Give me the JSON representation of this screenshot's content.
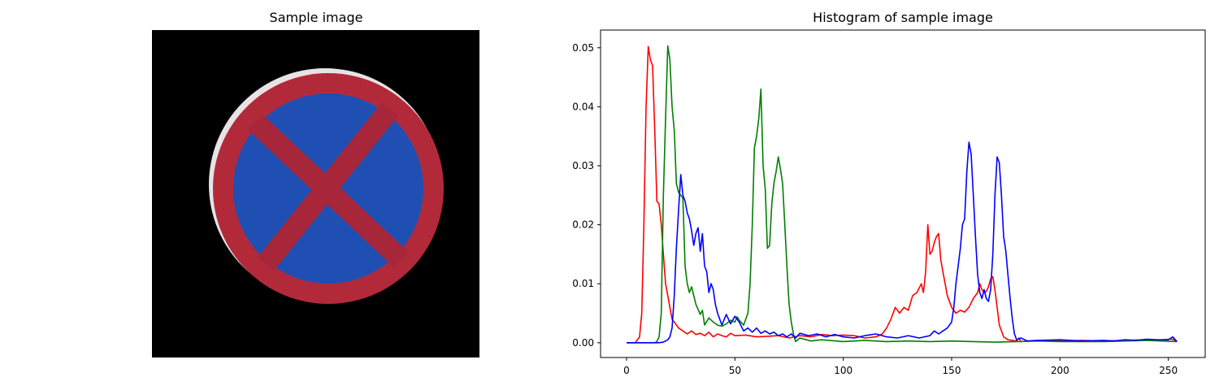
{
  "image_panel": {
    "title": "Sample image",
    "background": "#000000",
    "sign": {
      "ring_color": "#b22a3a",
      "fill_color": "#1f4fb3",
      "cross_color": "#a8263a"
    }
  },
  "chart_data": {
    "type": "line",
    "title": "Histogram of sample image",
    "xlabel": "",
    "ylabel": "",
    "xlim": [
      -12,
      267
    ],
    "ylim": [
      -0.0025,
      0.053
    ],
    "xticks": [
      0,
      50,
      100,
      150,
      200,
      250
    ],
    "xtick_labels": [
      "0",
      "50",
      "100",
      "150",
      "200",
      "250"
    ],
    "yticks": [
      0.0,
      0.01,
      0.02,
      0.03,
      0.04,
      0.05
    ],
    "ytick_labels": [
      "0.00",
      "0.01",
      "0.02",
      "0.03",
      "0.04",
      "0.05"
    ],
    "grid": false,
    "series": [
      {
        "color": "#ff0000",
        "points": [
          [
            0,
            0
          ],
          [
            4,
            0
          ],
          [
            6,
            0.001
          ],
          [
            7,
            0.005
          ],
          [
            8,
            0.02
          ],
          [
            9,
            0.04
          ],
          [
            10,
            0.0502
          ],
          [
            11,
            0.048
          ],
          [
            12,
            0.047
          ],
          [
            13,
            0.036
          ],
          [
            14,
            0.024
          ],
          [
            15,
            0.0235
          ],
          [
            16,
            0.02
          ],
          [
            17,
            0.015
          ],
          [
            18,
            0.01
          ],
          [
            19,
            0.008
          ],
          [
            20,
            0.006
          ],
          [
            21,
            0.004
          ],
          [
            22,
            0.0035
          ],
          [
            24,
            0.0025
          ],
          [
            26,
            0.002
          ],
          [
            28,
            0.0015
          ],
          [
            30,
            0.002
          ],
          [
            32,
            0.0014
          ],
          [
            34,
            0.0016
          ],
          [
            36,
            0.0012
          ],
          [
            38,
            0.0018
          ],
          [
            40,
            0.001
          ],
          [
            42,
            0.0015
          ],
          [
            44,
            0.0012
          ],
          [
            46,
            0.001
          ],
          [
            48,
            0.0016
          ],
          [
            50,
            0.0012
          ],
          [
            55,
            0.0013
          ],
          [
            60,
            0.001
          ],
          [
            65,
            0.0011
          ],
          [
            70,
            0.0012
          ],
          [
            75,
            0.0008
          ],
          [
            80,
            0.0012
          ],
          [
            85,
            0.001
          ],
          [
            90,
            0.0014
          ],
          [
            95,
            0.0012
          ],
          [
            100,
            0.0013
          ],
          [
            105,
            0.0012
          ],
          [
            110,
            0.0008
          ],
          [
            115,
            0.001
          ],
          [
            118,
            0.0015
          ],
          [
            120,
            0.0025
          ],
          [
            122,
            0.004
          ],
          [
            124,
            0.006
          ],
          [
            126,
            0.005
          ],
          [
            128,
            0.006
          ],
          [
            130,
            0.0055
          ],
          [
            132,
            0.008
          ],
          [
            134,
            0.0085
          ],
          [
            136,
            0.01
          ],
          [
            137,
            0.0085
          ],
          [
            138,
            0.012
          ],
          [
            139,
            0.02
          ],
          [
            140,
            0.015
          ],
          [
            141,
            0.0155
          ],
          [
            142,
            0.017
          ],
          [
            143,
            0.018
          ],
          [
            144,
            0.0185
          ],
          [
            145,
            0.014
          ],
          [
            146,
            0.012
          ],
          [
            147,
            0.01
          ],
          [
            148,
            0.008
          ],
          [
            150,
            0.006
          ],
          [
            152,
            0.005
          ],
          [
            154,
            0.0055
          ],
          [
            156,
            0.0052
          ],
          [
            158,
            0.006
          ],
          [
            160,
            0.0075
          ],
          [
            162,
            0.0085
          ],
          [
            163,
            0.01
          ],
          [
            164,
            0.009
          ],
          [
            165,
            0.0085
          ],
          [
            166,
            0.0087
          ],
          [
            167,
            0.0095
          ],
          [
            168,
            0.0108
          ],
          [
            169,
            0.0112
          ],
          [
            170,
            0.009
          ],
          [
            171,
            0.006
          ],
          [
            172,
            0.003
          ],
          [
            174,
            0.001
          ],
          [
            176,
            0.0005
          ],
          [
            180,
            0.0003
          ],
          [
            181,
            0.0008
          ],
          [
            182,
            0.0002
          ],
          [
            190,
            0.0004
          ],
          [
            200,
            0.0003
          ],
          [
            210,
            0.0004
          ],
          [
            220,
            0.0003
          ],
          [
            230,
            0.0004
          ],
          [
            240,
            0.0005
          ],
          [
            245,
            0.0004
          ],
          [
            250,
            0.0006
          ],
          [
            252,
            0.0006
          ],
          [
            254,
            0.0002
          ]
        ]
      },
      {
        "color": "#008000",
        "points": [
          [
            0,
            0
          ],
          [
            13,
            0
          ],
          [
            14,
            0.0002
          ],
          [
            15,
            0.001
          ],
          [
            16,
            0.005
          ],
          [
            17,
            0.025
          ],
          [
            18,
            0.038
          ],
          [
            19,
            0.0503
          ],
          [
            20,
            0.048
          ],
          [
            21,
            0.04
          ],
          [
            22,
            0.036
          ],
          [
            23,
            0.027
          ],
          [
            24,
            0.0255
          ],
          [
            25,
            0.025
          ],
          [
            26,
            0.0245
          ],
          [
            27,
            0.013
          ],
          [
            28,
            0.01
          ],
          [
            29,
            0.0085
          ],
          [
            30,
            0.0095
          ],
          [
            32,
            0.0065
          ],
          [
            34,
            0.0048
          ],
          [
            35,
            0.0055
          ],
          [
            36,
            0.003
          ],
          [
            38,
            0.0042
          ],
          [
            40,
            0.0035
          ],
          [
            42,
            0.003
          ],
          [
            44,
            0.0028
          ],
          [
            46,
            0.0032
          ],
          [
            48,
            0.0038
          ],
          [
            50,
            0.0035
          ],
          [
            51,
            0.0044
          ],
          [
            52,
            0.0038
          ],
          [
            54,
            0.003
          ],
          [
            56,
            0.005
          ],
          [
            57,
            0.01
          ],
          [
            58,
            0.02
          ],
          [
            59,
            0.033
          ],
          [
            60,
            0.035
          ],
          [
            61,
            0.038
          ],
          [
            62,
            0.043
          ],
          [
            63,
            0.03
          ],
          [
            64,
            0.026
          ],
          [
            65,
            0.016
          ],
          [
            66,
            0.0165
          ],
          [
            67,
            0.0235
          ],
          [
            68,
            0.027
          ],
          [
            69,
            0.029
          ],
          [
            70,
            0.0315
          ],
          [
            71,
            0.0295
          ],
          [
            72,
            0.027
          ],
          [
            73,
            0.02
          ],
          [
            74,
            0.013
          ],
          [
            75,
            0.0065
          ],
          [
            76,
            0.0035
          ],
          [
            77,
            0.0015
          ],
          [
            78,
            0.0002
          ],
          [
            80,
            0.0008
          ],
          [
            85,
            0.0003
          ],
          [
            90,
            0.0005
          ],
          [
            100,
            0.0002
          ],
          [
            110,
            0.0004
          ],
          [
            120,
            0.0002
          ],
          [
            130,
            0.0003
          ],
          [
            140,
            0.0002
          ],
          [
            150,
            0.0003
          ],
          [
            160,
            0.0002
          ],
          [
            170,
            0.0001
          ],
          [
            180,
            0.0002
          ],
          [
            190,
            0.0003
          ],
          [
            200,
            0.0002
          ],
          [
            220,
            0.0002
          ],
          [
            240,
            0.0004
          ],
          [
            254,
            0.0002
          ]
        ]
      },
      {
        "color": "#0000ff",
        "points": [
          [
            0,
            0
          ],
          [
            15,
            0
          ],
          [
            17,
            0.0001
          ],
          [
            19,
            0.0005
          ],
          [
            20,
            0.001
          ],
          [
            21,
            0.0025
          ],
          [
            22,
            0.008
          ],
          [
            23,
            0.016
          ],
          [
            24,
            0.0225
          ],
          [
            25,
            0.0285
          ],
          [
            26,
            0.025
          ],
          [
            27,
            0.024
          ],
          [
            28,
            0.022
          ],
          [
            29,
            0.021
          ],
          [
            30,
            0.019
          ],
          [
            31,
            0.0165
          ],
          [
            32,
            0.0185
          ],
          [
            33,
            0.0195
          ],
          [
            34,
            0.0155
          ],
          [
            35,
            0.0185
          ],
          [
            36,
            0.013
          ],
          [
            37,
            0.012
          ],
          [
            38,
            0.0085
          ],
          [
            39,
            0.01
          ],
          [
            40,
            0.009
          ],
          [
            41,
            0.0065
          ],
          [
            42,
            0.005
          ],
          [
            44,
            0.003
          ],
          [
            46,
            0.0048
          ],
          [
            48,
            0.0032
          ],
          [
            50,
            0.0045
          ],
          [
            52,
            0.0035
          ],
          [
            54,
            0.002
          ],
          [
            56,
            0.0025
          ],
          [
            58,
            0.0018
          ],
          [
            60,
            0.0025
          ],
          [
            62,
            0.0016
          ],
          [
            64,
            0.002
          ],
          [
            66,
            0.0015
          ],
          [
            68,
            0.0018
          ],
          [
            70,
            0.0012
          ],
          [
            72,
            0.0015
          ],
          [
            74,
            0.001
          ],
          [
            76,
            0.0015
          ],
          [
            78,
            0.0008
          ],
          [
            80,
            0.0016
          ],
          [
            84,
            0.0012
          ],
          [
            88,
            0.0015
          ],
          [
            92,
            0.001
          ],
          [
            96,
            0.0014
          ],
          [
            100,
            0.001
          ],
          [
            105,
            0.0008
          ],
          [
            110,
            0.0012
          ],
          [
            115,
            0.0015
          ],
          [
            120,
            0.001
          ],
          [
            125,
            0.0008
          ],
          [
            130,
            0.0012
          ],
          [
            135,
            0.0008
          ],
          [
            140,
            0.0012
          ],
          [
            142,
            0.002
          ],
          [
            144,
            0.0015
          ],
          [
            146,
            0.002
          ],
          [
            148,
            0.0025
          ],
          [
            150,
            0.0035
          ],
          [
            151,
            0.006
          ],
          [
            152,
            0.01
          ],
          [
            153,
            0.013
          ],
          [
            154,
            0.016
          ],
          [
            155,
            0.02
          ],
          [
            156,
            0.021
          ],
          [
            157,
            0.029
          ],
          [
            158,
            0.034
          ],
          [
            159,
            0.032
          ],
          [
            160,
            0.025
          ],
          [
            161,
            0.018
          ],
          [
            162,
            0.0115
          ],
          [
            163,
            0.0085
          ],
          [
            164,
            0.0075
          ],
          [
            165,
            0.009
          ],
          [
            166,
            0.0075
          ],
          [
            167,
            0.007
          ],
          [
            168,
            0.009
          ],
          [
            169,
            0.015
          ],
          [
            170,
            0.025
          ],
          [
            171,
            0.0315
          ],
          [
            172,
            0.0305
          ],
          [
            173,
            0.025
          ],
          [
            174,
            0.018
          ],
          [
            175,
            0.0155
          ],
          [
            176,
            0.0115
          ],
          [
            177,
            0.0075
          ],
          [
            178,
            0.004
          ],
          [
            179,
            0.0015
          ],
          [
            180,
            0.0005
          ],
          [
            182,
            0.0008
          ],
          [
            185,
            0.0003
          ],
          [
            190,
            0.0004
          ],
          [
            200,
            0.0005
          ],
          [
            210,
            0.0003
          ],
          [
            220,
            0.0004
          ],
          [
            225,
            0.0003
          ],
          [
            230,
            0.0005
          ],
          [
            235,
            0.0004
          ],
          [
            240,
            0.0006
          ],
          [
            245,
            0.0005
          ],
          [
            250,
            0.0005
          ],
          [
            252,
            0.001
          ],
          [
            254,
            0.0002
          ]
        ]
      }
    ]
  }
}
